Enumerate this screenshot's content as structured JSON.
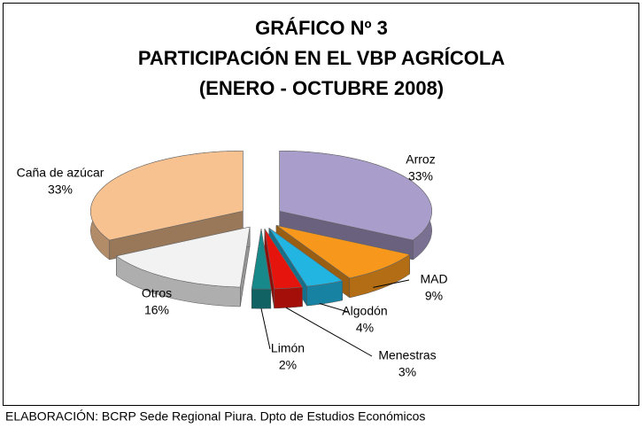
{
  "chart_data": {
    "type": "pie3d",
    "title": [
      "GRÁFICO Nº 3",
      "PARTICIPACIÓN EN EL VBP  AGRÍCOLA",
      "(ENERO - OCTUBRE 2008)"
    ],
    "categories": [
      "Arroz",
      "MAD",
      "Algodón",
      "Menestras",
      "Limón",
      "Otros",
      "Caña de azúcar"
    ],
    "values": [
      33,
      9,
      4,
      3,
      2,
      16,
      33
    ],
    "value_labels": [
      "33%",
      "9%",
      "4%",
      "3%",
      "2%",
      "16%",
      "33%"
    ],
    "colors": [
      "#a99dcb",
      "#f7981d",
      "#22b5e2",
      "#e5150d",
      "#17898a",
      "#f2f2f2",
      "#f7c190"
    ],
    "source": "ELABORACIÓN: BCRP Sede Regional Piura.  Dpto de Estudios Económicos"
  }
}
